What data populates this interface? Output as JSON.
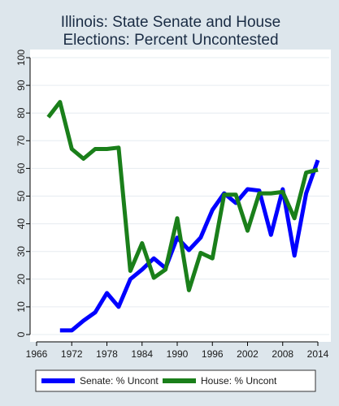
{
  "chart_data": {
    "type": "line",
    "title": [
      "Illinois: State Senate and House",
      "Elections: Percent Uncontested"
    ],
    "xlabel": "",
    "ylabel": "",
    "xlim": [
      1966,
      2014
    ],
    "ylim": [
      0,
      100
    ],
    "x_ticks": [
      1966,
      1972,
      1978,
      1984,
      1990,
      1996,
      2002,
      2008,
      2014
    ],
    "y_ticks": [
      0,
      10,
      20,
      30,
      40,
      50,
      60,
      70,
      80,
      90,
      100
    ],
    "grid": "horizontal",
    "legend_position": "bottom",
    "series": [
      {
        "name": "Senate: % Uncont",
        "color": "#0000ff",
        "x": [
          1970,
          1972,
          1974,
          1976,
          1978,
          1980,
          1982,
          1984,
          1986,
          1988,
          1990,
          1992,
          1994,
          1996,
          1998,
          2000,
          2002,
          2004,
          2006,
          2008,
          2010,
          2012,
          2014
        ],
        "y": [
          1.5,
          1.5,
          5,
          8,
          15,
          10,
          20,
          23.5,
          27.5,
          24,
          35,
          30.5,
          35,
          45,
          51,
          47.5,
          52.5,
          52,
          36,
          52.5,
          28.5,
          51,
          63
        ]
      },
      {
        "name": "House: % Uncont",
        "color": "#1a7f1a",
        "x": [
          1968,
          1970,
          1972,
          1974,
          1976,
          1978,
          1980,
          1982,
          1984,
          1986,
          1988,
          1990,
          1992,
          1994,
          1996,
          1998,
          2000,
          2002,
          2004,
          2006,
          2008,
          2010,
          2012,
          2014
        ],
        "y": [
          78.5,
          84,
          67,
          63.5,
          67,
          67,
          67.5,
          23,
          33,
          20.5,
          23.5,
          42,
          16,
          29.5,
          27.5,
          50.5,
          50.5,
          37.5,
          51,
          51,
          51.5,
          42,
          58.5,
          59.5
        ]
      }
    ]
  }
}
